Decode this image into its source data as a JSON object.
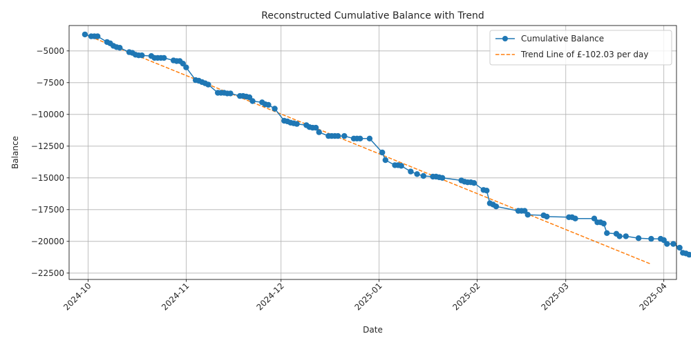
{
  "chart_data": {
    "type": "line",
    "title": "Reconstructed Cumulative Balance with Trend",
    "xlabel": "Date",
    "ylabel": "Balance",
    "x_range": [
      "2024-09-25",
      "2025-04-05"
    ],
    "ylim": [
      -23000,
      -3000
    ],
    "grid": true,
    "legend_position": "top-right",
    "x_ticks": [
      "2024-10",
      "2024-11",
      "2024-12",
      "2025-01",
      "2025-02",
      "2025-03",
      "2025-04"
    ],
    "x_tick_dates": [
      "2024-10-01",
      "2024-11-01",
      "2024-12-01",
      "2025-01-01",
      "2025-02-01",
      "2025-03-01",
      "2025-04-01"
    ],
    "y_ticks": [
      -5000,
      -7500,
      -10000,
      -12500,
      -15000,
      -17500,
      -20000,
      -22500
    ],
    "y_tick_labels": [
      "−5000",
      "−7500",
      "−10000",
      "−12500",
      "−15000",
      "−17500",
      "−20000",
      "−22500"
    ],
    "series": [
      {
        "name": "Cumulative Balance",
        "color": "#1f77b4",
        "marker": "circle",
        "points": [
          [
            "2024-09-30",
            -3700
          ],
          [
            "2024-10-02",
            -3850
          ],
          [
            "2024-10-03",
            -3850
          ],
          [
            "2024-10-04",
            -3850
          ],
          [
            "2024-10-07",
            -4300
          ],
          [
            "2024-10-08",
            -4400
          ],
          [
            "2024-10-09",
            -4600
          ],
          [
            "2024-10-10",
            -4700
          ],
          [
            "2024-10-11",
            -4750
          ],
          [
            "2024-10-14",
            -5100
          ],
          [
            "2024-10-15",
            -5150
          ],
          [
            "2024-10-16",
            -5300
          ],
          [
            "2024-10-17",
            -5350
          ],
          [
            "2024-10-18",
            -5350
          ],
          [
            "2024-10-21",
            -5400
          ],
          [
            "2024-10-22",
            -5550
          ],
          [
            "2024-10-23",
            -5550
          ],
          [
            "2024-10-24",
            -5550
          ],
          [
            "2024-10-25",
            -5550
          ],
          [
            "2024-10-28",
            -5750
          ],
          [
            "2024-10-29",
            -5800
          ],
          [
            "2024-10-30",
            -5800
          ],
          [
            "2024-10-31",
            -6000
          ],
          [
            "2024-11-01",
            -6300
          ],
          [
            "2024-11-04",
            -7300
          ],
          [
            "2024-11-05",
            -7350
          ],
          [
            "2024-11-06",
            -7450
          ],
          [
            "2024-11-07",
            -7550
          ],
          [
            "2024-11-08",
            -7650
          ],
          [
            "2024-11-11",
            -8300
          ],
          [
            "2024-11-12",
            -8300
          ],
          [
            "2024-11-13",
            -8300
          ],
          [
            "2024-11-14",
            -8350
          ],
          [
            "2024-11-15",
            -8350
          ],
          [
            "2024-11-18",
            -8550
          ],
          [
            "2024-11-19",
            -8550
          ],
          [
            "2024-11-20",
            -8600
          ],
          [
            "2024-11-21",
            -8650
          ],
          [
            "2024-11-22",
            -8950
          ],
          [
            "2024-11-25",
            -9050
          ],
          [
            "2024-11-26",
            -9200
          ],
          [
            "2024-11-27",
            -9250
          ],
          [
            "2024-11-29",
            -9550
          ],
          [
            "2024-12-02",
            -10500
          ],
          [
            "2024-12-03",
            -10550
          ],
          [
            "2024-12-04",
            -10650
          ],
          [
            "2024-12-05",
            -10700
          ],
          [
            "2024-12-06",
            -10750
          ],
          [
            "2024-12-09",
            -10850
          ],
          [
            "2024-12-10",
            -11000
          ],
          [
            "2024-12-11",
            -11050
          ],
          [
            "2024-12-12",
            -11050
          ],
          [
            "2024-12-13",
            -11400
          ],
          [
            "2024-12-16",
            -11700
          ],
          [
            "2024-12-17",
            -11700
          ],
          [
            "2024-12-18",
            -11700
          ],
          [
            "2024-12-19",
            -11700
          ],
          [
            "2024-12-21",
            -11700
          ],
          [
            "2024-12-24",
            -11900
          ],
          [
            "2024-12-25",
            -11900
          ],
          [
            "2024-12-26",
            -11900
          ],
          [
            "2024-12-29",
            -11900
          ],
          [
            "2025-01-02",
            -13000
          ],
          [
            "2025-01-03",
            -13600
          ],
          [
            "2025-01-06",
            -14000
          ],
          [
            "2025-01-07",
            -14000
          ],
          [
            "2025-01-08",
            -14050
          ],
          [
            "2025-01-11",
            -14500
          ],
          [
            "2025-01-13",
            -14700
          ],
          [
            "2025-01-15",
            -14850
          ],
          [
            "2025-01-18",
            -14900
          ],
          [
            "2025-01-19",
            -14900
          ],
          [
            "2025-01-20",
            -14950
          ],
          [
            "2025-01-21",
            -15000
          ],
          [
            "2025-01-27",
            -15200
          ],
          [
            "2025-01-28",
            -15300
          ],
          [
            "2025-01-29",
            -15350
          ],
          [
            "2025-01-30",
            -15350
          ],
          [
            "2025-01-31",
            -15400
          ],
          [
            "2025-02-03",
            -15950
          ],
          [
            "2025-02-04",
            -16000
          ],
          [
            "2025-02-05",
            -17000
          ],
          [
            "2025-02-06",
            -17100
          ],
          [
            "2025-02-07",
            -17250
          ],
          [
            "2025-02-14",
            -17600
          ],
          [
            "2025-02-15",
            -17600
          ],
          [
            "2025-02-16",
            -17600
          ],
          [
            "2025-02-17",
            -17900
          ],
          [
            "2025-02-22",
            -17950
          ],
          [
            "2025-02-23",
            -18050
          ],
          [
            "2025-03-02",
            -18100
          ],
          [
            "2025-03-03",
            -18100
          ],
          [
            "2025-03-04",
            -18200
          ],
          [
            "2025-03-10",
            -18200
          ],
          [
            "2025-03-11",
            -18500
          ],
          [
            "2025-03-12",
            -18500
          ],
          [
            "2025-03-13",
            -18600
          ],
          [
            "2025-03-14",
            -19350
          ],
          [
            "2025-03-17",
            -19400
          ],
          [
            "2025-03-18",
            -19600
          ],
          [
            "2025-03-20",
            -19600
          ],
          [
            "2025-03-24",
            -19750
          ],
          [
            "2025-03-28",
            -19800
          ],
          [
            "2025-03-31",
            -19800
          ],
          [
            "2025-04-01",
            -19900
          ],
          [
            "2025-04-02",
            -20200
          ],
          [
            "2025-04-04",
            -20200
          ],
          [
            "2025-04-06",
            -20500
          ],
          [
            "2025-04-07",
            -20900
          ],
          [
            "2025-04-08",
            -20950
          ],
          [
            "2025-04-09",
            -21050
          ],
          [
            "2025-04-10",
            -21050
          ]
        ]
      },
      {
        "name": "Trend Line of £-102.03 per day",
        "color": "#ff7f0e",
        "style": "dashed",
        "points": [
          [
            "2024-09-30",
            -3700
          ],
          [
            "2025-03-28",
            -21800
          ]
        ]
      }
    ]
  }
}
